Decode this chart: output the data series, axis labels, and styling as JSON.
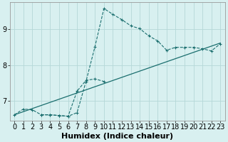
{
  "title": "",
  "xlabel": "Humidex (Indice chaleur)",
  "background_color": "#d8f0f0",
  "line_color": "#1a6e6e",
  "xlim": [
    -0.5,
    23.5
  ],
  "ylim": [
    6.45,
    9.75
  ],
  "yticks": [
    7,
    8,
    9
  ],
  "xticks": [
    0,
    1,
    2,
    3,
    4,
    5,
    6,
    7,
    8,
    9,
    10,
    11,
    12,
    13,
    14,
    15,
    16,
    17,
    18,
    19,
    20,
    21,
    22,
    23
  ],
  "curve1_x": [
    0,
    1,
    2,
    3,
    4,
    5,
    6,
    7,
    8,
    9,
    10,
    11,
    12,
    13,
    14,
    15,
    16,
    17,
    18,
    19,
    20,
    21,
    22,
    23
  ],
  "curve1_y": [
    6.62,
    6.78,
    6.76,
    6.62,
    6.62,
    6.6,
    6.58,
    6.68,
    7.55,
    8.52,
    9.58,
    9.42,
    9.27,
    9.1,
    9.02,
    8.82,
    8.68,
    8.42,
    8.5,
    8.5,
    8.5,
    8.46,
    8.4,
    8.6
  ],
  "curve2_x": [
    0,
    23
  ],
  "curve2_y": [
    6.62,
    8.62
  ],
  "curve3_x": [
    3,
    4,
    5,
    6,
    7,
    8,
    9,
    10
  ],
  "curve3_y": [
    6.62,
    6.62,
    6.6,
    6.58,
    7.28,
    7.58,
    7.62,
    7.55
  ],
  "grid_color": "#b5d8d8",
  "xlabel_fontsize": 8,
  "tick_fontsize": 7,
  "figsize": [
    3.2,
    2.0
  ],
  "dpi": 100
}
